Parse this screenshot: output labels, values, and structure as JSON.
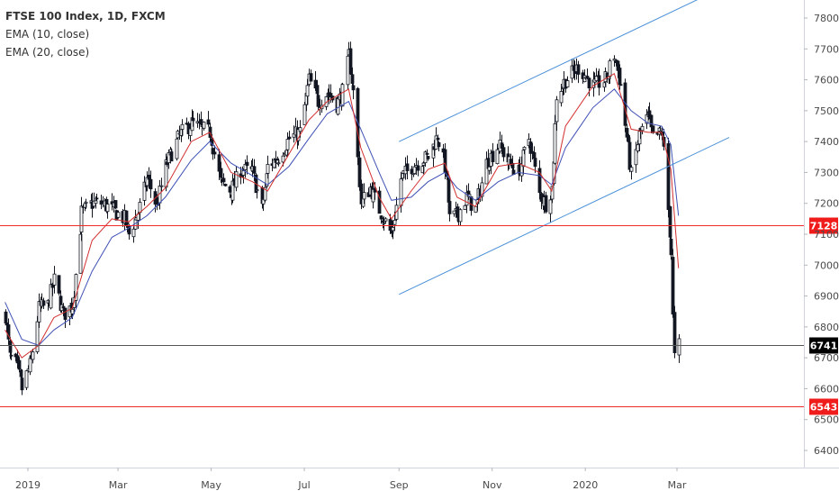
{
  "legend": {
    "title": "FTSE 100 Index, 1D, FXCM",
    "ema10": "EMA (10, close)",
    "ema20": "EMA (20, close)"
  },
  "colors": {
    "candle": "#131722",
    "ema10": "#d32f2f",
    "ema20": "#3f51b5",
    "channel": "#4a90d9",
    "level": "#ef2b2b",
    "last": "#555555",
    "label_red": "#f01c1c",
    "label_black": "#000000"
  },
  "chart_data": {
    "type": "candlestick",
    "x_ticks": [
      "2019",
      "Mar",
      "May",
      "Jul",
      "Sep",
      "Nov",
      "2020",
      "Mar"
    ],
    "y_ticks": [
      6400,
      6500,
      6600,
      6700,
      6800,
      6900,
      7000,
      7100,
      7200,
      7300,
      7400,
      7500,
      7600,
      7700,
      7800
    ],
    "ylim": [
      6330,
      7830
    ],
    "horizontal_levels": [
      {
        "value": 7128,
        "label": "7128",
        "style": "red"
      },
      {
        "value": 6741,
        "label": "6741",
        "style": "last"
      },
      {
        "value": 6543,
        "label": "6543",
        "style": "red"
      }
    ],
    "channel": {
      "upper": [
        [
          "2019-09-01",
          7400
        ],
        [
          "2020-03-01",
          7850
        ]
      ],
      "lower": [
        [
          "2019-09-01",
          6905
        ],
        [
          "2020-03-01",
          7355
        ]
      ]
    },
    "close_path": [
      [
        "2018-12-17",
        6840
      ],
      [
        "2018-12-20",
        6700
      ],
      [
        "2018-12-24",
        6680
      ],
      [
        "2018-12-28",
        6600
      ],
      [
        "2019-01-03",
        6690
      ],
      [
        "2019-01-08",
        6860
      ],
      [
        "2019-01-14",
        6870
      ],
      [
        "2019-01-18",
        6950
      ],
      [
        "2019-01-24",
        6840
      ],
      [
        "2019-01-30",
        6870
      ],
      [
        "2019-02-05",
        7170
      ],
      [
        "2019-02-12",
        7200
      ],
      [
        "2019-02-18",
        7200
      ],
      [
        "2019-02-25",
        7180
      ],
      [
        "2019-03-05",
        7150
      ],
      [
        "2019-03-08",
        7100
      ],
      [
        "2019-03-14",
        7170
      ],
      [
        "2019-03-20",
        7280
      ],
      [
        "2019-03-26",
        7190
      ],
      [
        "2019-04-01",
        7320
      ],
      [
        "2019-04-10",
        7420
      ],
      [
        "2019-04-18",
        7460
      ],
      [
        "2019-04-25",
        7440
      ],
      [
        "2019-04-30",
        7430
      ],
      [
        "2019-05-07",
        7270
      ],
      [
        "2019-05-14",
        7240
      ],
      [
        "2019-05-20",
        7310
      ],
      [
        "2019-05-28",
        7300
      ],
      [
        "2019-06-03",
        7180
      ],
      [
        "2019-06-07",
        7320
      ],
      [
        "2019-06-14",
        7350
      ],
      [
        "2019-06-21",
        7410
      ],
      [
        "2019-06-28",
        7430
      ],
      [
        "2019-07-04",
        7600
      ],
      [
        "2019-07-10",
        7530
      ],
      [
        "2019-07-16",
        7560
      ],
      [
        "2019-07-22",
        7520
      ],
      [
        "2019-07-26",
        7560
      ],
      [
        "2019-07-30",
        7680
      ],
      [
        "2019-08-02",
        7560
      ],
      [
        "2019-08-07",
        7200
      ],
      [
        "2019-08-13",
        7250
      ],
      [
        "2019-08-19",
        7180
      ],
      [
        "2019-08-27",
        7100
      ],
      [
        "2019-09-02",
        7280
      ],
      [
        "2019-09-09",
        7320
      ],
      [
        "2019-09-16",
        7340
      ],
      [
        "2019-09-20",
        7350
      ],
      [
        "2019-09-26",
        7420
      ],
      [
        "2019-10-01",
        7320
      ],
      [
        "2019-10-04",
        7150
      ],
      [
        "2019-10-09",
        7160
      ],
      [
        "2019-10-15",
        7220
      ],
      [
        "2019-10-21",
        7180
      ],
      [
        "2019-10-28",
        7330
      ],
      [
        "2019-11-05",
        7390
      ],
      [
        "2019-11-12",
        7330
      ],
      [
        "2019-11-18",
        7300
      ],
      [
        "2019-11-25",
        7410
      ],
      [
        "2019-12-02",
        7230
      ],
      [
        "2019-12-06",
        7200
      ],
      [
        "2019-12-10",
        7250
      ],
      [
        "2019-12-13",
        7550
      ],
      [
        "2019-12-19",
        7600
      ],
      [
        "2019-12-27",
        7640
      ],
      [
        "2020-01-06",
        7580
      ],
      [
        "2020-01-14",
        7600
      ],
      [
        "2020-01-20",
        7680
      ],
      [
        "2020-01-24",
        7580
      ],
      [
        "2020-01-31",
        7290
      ],
      [
        "2020-02-05",
        7420
      ],
      [
        "2020-02-11",
        7480
      ],
      [
        "2020-02-14",
        7410
      ],
      [
        "2020-02-20",
        7430
      ],
      [
        "2020-02-24",
        7180
      ],
      [
        "2020-02-26",
        7040
      ],
      [
        "2020-02-27",
        6830
      ],
      [
        "2020-02-28",
        6700
      ],
      [
        "2020-03-02",
        6741
      ]
    ],
    "ema10": [
      [
        "2018-12-17",
        6790
      ],
      [
        "2018-12-28",
        6700
      ],
      [
        "2019-01-08",
        6740
      ],
      [
        "2019-01-18",
        6830
      ],
      [
        "2019-01-30",
        6860
      ],
      [
        "2019-02-12",
        7080
      ],
      [
        "2019-02-25",
        7150
      ],
      [
        "2019-03-08",
        7140
      ],
      [
        "2019-03-20",
        7190
      ],
      [
        "2019-04-01",
        7250
      ],
      [
        "2019-04-18",
        7400
      ],
      [
        "2019-04-30",
        7430
      ],
      [
        "2019-05-14",
        7300
      ],
      [
        "2019-05-28",
        7270
      ],
      [
        "2019-06-07",
        7240
      ],
      [
        "2019-06-21",
        7360
      ],
      [
        "2019-07-04",
        7470
      ],
      [
        "2019-07-16",
        7530
      ],
      [
        "2019-07-30",
        7570
      ],
      [
        "2019-08-07",
        7380
      ],
      [
        "2019-08-19",
        7220
      ],
      [
        "2019-08-27",
        7150
      ],
      [
        "2019-09-09",
        7240
      ],
      [
        "2019-09-20",
        7310
      ],
      [
        "2019-10-01",
        7330
      ],
      [
        "2019-10-09",
        7220
      ],
      [
        "2019-10-21",
        7190
      ],
      [
        "2019-11-05",
        7320
      ],
      [
        "2019-11-18",
        7330
      ],
      [
        "2019-12-02",
        7300
      ],
      [
        "2019-12-10",
        7240
      ],
      [
        "2019-12-19",
        7450
      ],
      [
        "2020-01-06",
        7580
      ],
      [
        "2020-01-20",
        7620
      ],
      [
        "2020-01-31",
        7440
      ],
      [
        "2020-02-11",
        7430
      ],
      [
        "2020-02-20",
        7430
      ],
      [
        "2020-02-26",
        7310
      ],
      [
        "2020-03-02",
        6990
      ]
    ],
    "ema20": [
      [
        "2018-12-17",
        6880
      ],
      [
        "2018-12-28",
        6760
      ],
      [
        "2019-01-08",
        6740
      ],
      [
        "2019-01-18",
        6790
      ],
      [
        "2019-01-30",
        6830
      ],
      [
        "2019-02-12",
        6980
      ],
      [
        "2019-02-25",
        7090
      ],
      [
        "2019-03-08",
        7120
      ],
      [
        "2019-03-20",
        7160
      ],
      [
        "2019-04-01",
        7220
      ],
      [
        "2019-04-18",
        7340
      ],
      [
        "2019-04-30",
        7400
      ],
      [
        "2019-05-14",
        7330
      ],
      [
        "2019-05-28",
        7290
      ],
      [
        "2019-06-07",
        7260
      ],
      [
        "2019-06-21",
        7320
      ],
      [
        "2019-07-04",
        7410
      ],
      [
        "2019-07-16",
        7490
      ],
      [
        "2019-07-30",
        7530
      ],
      [
        "2019-08-07",
        7440
      ],
      [
        "2019-08-19",
        7300
      ],
      [
        "2019-08-27",
        7210
      ],
      [
        "2019-09-09",
        7220
      ],
      [
        "2019-09-20",
        7270
      ],
      [
        "2019-10-01",
        7300
      ],
      [
        "2019-10-09",
        7250
      ],
      [
        "2019-10-21",
        7210
      ],
      [
        "2019-11-05",
        7270
      ],
      [
        "2019-11-18",
        7300
      ],
      [
        "2019-12-02",
        7290
      ],
      [
        "2019-12-10",
        7260
      ],
      [
        "2019-12-19",
        7380
      ],
      [
        "2020-01-06",
        7510
      ],
      [
        "2020-01-20",
        7570
      ],
      [
        "2020-01-31",
        7500
      ],
      [
        "2020-02-11",
        7460
      ],
      [
        "2020-02-20",
        7450
      ],
      [
        "2020-02-26",
        7390
      ],
      [
        "2020-03-02",
        7160
      ]
    ]
  }
}
